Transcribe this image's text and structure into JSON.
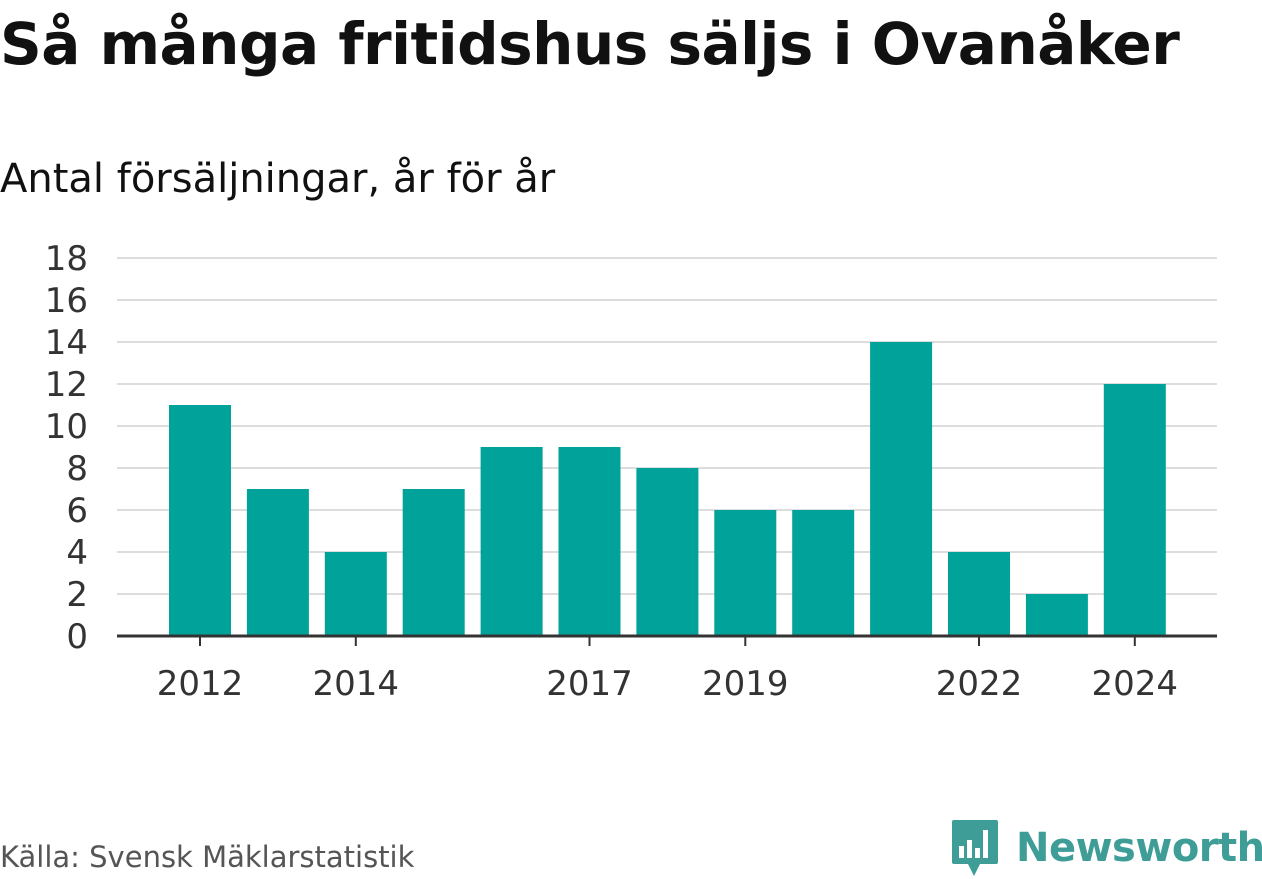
{
  "title": "Så många fritidshus säljs i Ovanåker",
  "subtitle": "Antal försäljningar, år för år",
  "source": "Källa: Svensk Mäklarstatistik",
  "brand": {
    "name": "Newsworthy",
    "icon": "newsworthy-logo-icon",
    "color": "#3f9d97"
  },
  "colors": {
    "bar": "#00a29a",
    "grid": "#dddddd",
    "axis": "#333333"
  },
  "chart_data": {
    "type": "bar",
    "categories": [
      "2012",
      "2013",
      "2014",
      "2015",
      "2016",
      "2017",
      "2018",
      "2019",
      "2020",
      "2021",
      "2022",
      "2023",
      "2024"
    ],
    "values": [
      11,
      7,
      4,
      7,
      9,
      9,
      8,
      6,
      6,
      14,
      4,
      2,
      12
    ],
    "x_tick_labels": [
      "2012",
      "2014",
      "2017",
      "2019",
      "2022",
      "2024"
    ],
    "y_ticks": [
      0,
      2,
      4,
      6,
      8,
      10,
      12,
      14,
      16,
      18
    ],
    "ylim": [
      0,
      18
    ],
    "grid": true,
    "legend": "none"
  }
}
